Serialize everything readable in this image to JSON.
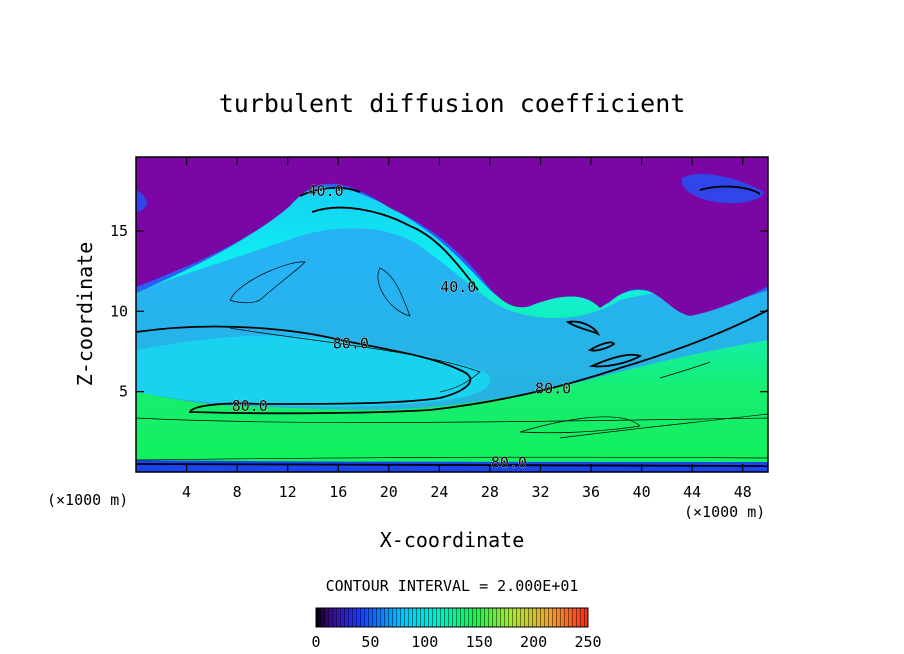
{
  "chart_data": {
    "type": "contour",
    "title": "turbulent diffusion coefficient",
    "xlabel": "X-coordinate",
    "ylabel": "Z-coordinate",
    "x_unit_label": "(×1000 m)",
    "xlim": [
      0,
      50
    ],
    "ylim": [
      0,
      19.6
    ],
    "x_ticks": [
      4,
      8,
      12,
      16,
      20,
      24,
      28,
      32,
      36,
      40,
      44,
      48
    ],
    "y_ticks": [
      5,
      10,
      15
    ],
    "contour_interval_label": "CONTOUR INTERVAL = 2.000E+01",
    "contour_labels": [
      {
        "text": "40.0",
        "x": 15.0,
        "y": 17.5
      },
      {
        "text": "40.0",
        "x": 25.5,
        "y": 11.5
      },
      {
        "text": "80.0",
        "x": 17.0,
        "y": 8.0
      },
      {
        "text": "80.0",
        "x": 9.0,
        "y": 4.1
      },
      {
        "text": "80.0",
        "x": 33.0,
        "y": 5.2
      },
      {
        "text": "80.0",
        "x": 29.5,
        "y": 0.6
      }
    ],
    "colorbar": {
      "range": [
        0,
        250
      ],
      "tick_labels": [
        "0",
        "50",
        "100",
        "150",
        "200",
        "250"
      ]
    },
    "grid": false,
    "colors": {
      "low": "#7a06a6",
      "blue": "#1c3cff",
      "cyan": "#00e6f0",
      "green": "#14ef6a",
      "high": "#ff2a14"
    }
  }
}
